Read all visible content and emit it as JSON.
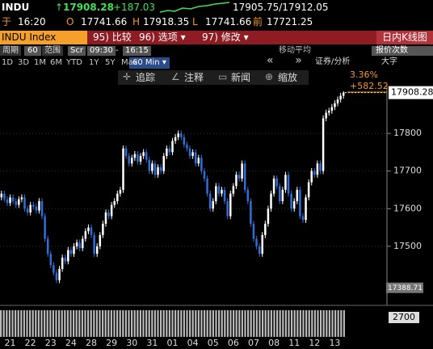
{
  "quote": {
    "ticker": "INDU",
    "last": "17908.28",
    "change": "+187.03",
    "bid_ask": "17905.75/17912.05",
    "time_label": "于",
    "time": "16:20",
    "open_label": "O",
    "open": "17741.66",
    "high_label": "H",
    "high": "17918.35",
    "low_label": "L",
    "low": "17741.66",
    "prev_label": "前",
    "prev": "17721.25"
  },
  "toolbar": {
    "security": "INDU Index",
    "buttons": [
      "95) 比较",
      "96) 选项 ▾",
      "97) 修改 ▾"
    ],
    "view": "日内K线图"
  },
  "settings": {
    "period_label": "周期",
    "period": "60",
    "range_label": "范围",
    "range_type": "Scr",
    "start": "09:30",
    "sep": "-",
    "end": "16:15",
    "ma": "移动平均",
    "ticks": "报价次数"
  },
  "ranges": [
    "1D",
    "3D",
    "1M",
    "6M",
    "YTD",
    "1Y",
    "5Y",
    "Max"
  ],
  "interval": "60 Min ▾",
  "tools": [
    "追踪",
    "注释",
    "新闻",
    "缩放"
  ],
  "extra": [
    "证券/分析",
    "大字"
  ],
  "chart_data": {
    "type": "candlestick",
    "up_color": "#ffffff",
    "down_color": "#2f6fd6",
    "ylim": [
      17371,
      17929
    ],
    "yticks": [
      17500,
      17600,
      17700,
      17800
    ],
    "grid": true,
    "last_price": 17908.28,
    "low_marker": 17388.71,
    "annotations": [
      "3.36%",
      "+582.52"
    ],
    "volume_label": 2700,
    "categories": [
      null,
      null,
      null,
      "21",
      null,
      null,
      null,
      null,
      null,
      null,
      "22",
      null,
      null,
      null,
      null,
      null,
      null,
      "23",
      null,
      null,
      null,
      null,
      null,
      null,
      "24",
      null,
      null,
      null,
      null,
      null,
      null,
      "28",
      null,
      null,
      null,
      null,
      null,
      null,
      "29",
      null,
      null,
      null,
      null,
      null,
      null,
      "30",
      null,
      null,
      null,
      null,
      null,
      null,
      "31",
      null,
      null,
      null,
      null,
      null,
      null,
      "01",
      null,
      null,
      null,
      null,
      null,
      null,
      "04",
      null,
      null,
      null,
      null,
      null,
      null,
      "05",
      null,
      null,
      null,
      null,
      null,
      null,
      "06",
      null,
      null,
      null,
      null,
      null,
      null,
      "07",
      null,
      null,
      null,
      null,
      null,
      null,
      "08",
      null,
      null,
      null,
      null,
      null,
      null,
      "11",
      null,
      null,
      null,
      null,
      null,
      null,
      "12",
      null,
      null,
      null,
      null,
      null,
      null,
      "13",
      null,
      null,
      null
    ],
    "ohlc": [
      [
        17630,
        17648,
        17622,
        17640
      ],
      [
        17640,
        17648,
        17617,
        17625
      ],
      [
        17625,
        17633,
        17607,
        17615
      ],
      [
        17615,
        17638,
        17607,
        17630
      ],
      [
        17630,
        17638,
        17612,
        17620
      ],
      [
        17620,
        17628,
        17602,
        17610
      ],
      [
        17610,
        17633,
        17602,
        17625
      ],
      [
        17625,
        17638,
        17617,
        17630
      ],
      [
        17630,
        17638,
        17592,
        17600
      ],
      [
        17600,
        17608,
        17582,
        17590
      ],
      [
        17590,
        17618,
        17582,
        17610
      ],
      [
        17610,
        17618,
        17597,
        17605
      ],
      [
        17605,
        17613,
        17587,
        17595
      ],
      [
        17595,
        17628,
        17587,
        17620
      ],
      [
        17620,
        17628,
        17572,
        17580
      ],
      [
        17580,
        17588,
        17512,
        17520
      ],
      [
        17520,
        17528,
        17472,
        17480
      ],
      [
        17480,
        17488,
        17442,
        17450
      ],
      [
        17450,
        17458,
        17422,
        17430
      ],
      [
        17430,
        17438,
        17402,
        17410
      ],
      [
        17410,
        17448,
        17402,
        17440
      ],
      [
        17440,
        17478,
        17432,
        17470
      ],
      [
        17470,
        17478,
        17452,
        17460
      ],
      [
        17460,
        17498,
        17452,
        17490
      ],
      [
        17490,
        17498,
        17472,
        17480
      ],
      [
        17480,
        17508,
        17472,
        17500
      ],
      [
        17500,
        17518,
        17492,
        17510
      ],
      [
        17510,
        17518,
        17487,
        17495
      ],
      [
        17495,
        17528,
        17487,
        17520
      ],
      [
        17520,
        17548,
        17512,
        17540
      ],
      [
        17540,
        17558,
        17532,
        17550
      ],
      [
        17550,
        17558,
        17522,
        17530
      ],
      [
        17530,
        17538,
        17472,
        17480
      ],
      [
        17480,
        17508,
        17472,
        17500
      ],
      [
        17500,
        17538,
        17492,
        17530
      ],
      [
        17530,
        17568,
        17522,
        17560
      ],
      [
        17560,
        17598,
        17552,
        17590
      ],
      [
        17590,
        17598,
        17572,
        17580
      ],
      [
        17580,
        17618,
        17572,
        17610
      ],
      [
        17610,
        17628,
        17602,
        17620
      ],
      [
        17620,
        17648,
        17612,
        17640
      ],
      [
        17640,
        17658,
        17632,
        17650
      ],
      [
        17650,
        17768,
        17642,
        17760
      ],
      [
        17760,
        17768,
        17732,
        17740
      ],
      [
        17740,
        17748,
        17712,
        17720
      ],
      [
        17720,
        17743,
        17712,
        17735
      ],
      [
        17735,
        17753,
        17727,
        17745
      ],
      [
        17745,
        17753,
        17717,
        17725
      ],
      [
        17725,
        17748,
        17717,
        17740
      ],
      [
        17740,
        17758,
        17732,
        17750
      ],
      [
        17750,
        17758,
        17722,
        17730
      ],
      [
        17730,
        17738,
        17692,
        17700
      ],
      [
        17700,
        17728,
        17692,
        17720
      ],
      [
        17720,
        17728,
        17682,
        17690
      ],
      [
        17690,
        17718,
        17682,
        17710
      ],
      [
        17710,
        17718,
        17692,
        17700
      ],
      [
        17700,
        17748,
        17692,
        17740
      ],
      [
        17740,
        17768,
        17732,
        17760
      ],
      [
        17760,
        17768,
        17742,
        17750
      ],
      [
        17750,
        17788,
        17742,
        17780
      ],
      [
        17780,
        17798,
        17772,
        17790
      ],
      [
        17790,
        17808,
        17782,
        17800
      ],
      [
        17800,
        17808,
        17782,
        17790
      ],
      [
        17790,
        17798,
        17762,
        17770
      ],
      [
        17770,
        17778,
        17752,
        17760
      ],
      [
        17760,
        17768,
        17732,
        17740
      ],
      [
        17740,
        17758,
        17732,
        17750
      ],
      [
        17750,
        17758,
        17712,
        17720
      ],
      [
        17720,
        17743,
        17712,
        17735
      ],
      [
        17735,
        17743,
        17692,
        17700
      ],
      [
        17700,
        17708,
        17672,
        17680
      ],
      [
        17680,
        17688,
        17632,
        17640
      ],
      [
        17640,
        17648,
        17592,
        17600
      ],
      [
        17600,
        17628,
        17592,
        17620
      ],
      [
        17620,
        17668,
        17612,
        17660
      ],
      [
        17660,
        17668,
        17632,
        17640
      ],
      [
        17640,
        17658,
        17632,
        17650
      ],
      [
        17650,
        17658,
        17612,
        17620
      ],
      [
        17620,
        17628,
        17572,
        17580
      ],
      [
        17580,
        17648,
        17572,
        17640
      ],
      [
        17640,
        17668,
        17632,
        17660
      ],
      [
        17660,
        17698,
        17652,
        17690
      ],
      [
        17690,
        17698,
        17672,
        17680
      ],
      [
        17680,
        17728,
        17672,
        17720
      ],
      [
        17720,
        17728,
        17642,
        17650
      ],
      [
        17650,
        17658,
        17612,
        17620
      ],
      [
        17620,
        17628,
        17552,
        17560
      ],
      [
        17560,
        17568,
        17512,
        17520
      ],
      [
        17520,
        17528,
        17492,
        17500
      ],
      [
        17500,
        17508,
        17472,
        17480
      ],
      [
        17480,
        17538,
        17472,
        17530
      ],
      [
        17530,
        17568,
        17522,
        17560
      ],
      [
        17560,
        17608,
        17552,
        17600
      ],
      [
        17600,
        17648,
        17592,
        17640
      ],
      [
        17640,
        17688,
        17632,
        17680
      ],
      [
        17680,
        17688,
        17652,
        17660
      ],
      [
        17660,
        17668,
        17612,
        17620
      ],
      [
        17620,
        17658,
        17612,
        17650
      ],
      [
        17650,
        17698,
        17642,
        17690
      ],
      [
        17690,
        17698,
        17632,
        17640
      ],
      [
        17640,
        17648,
        17592,
        17600
      ],
      [
        17600,
        17628,
        17592,
        17620
      ],
      [
        17620,
        17658,
        17612,
        17650
      ],
      [
        17650,
        17658,
        17572,
        17580
      ],
      [
        17580,
        17588,
        17562,
        17570
      ],
      [
        17570,
        17638,
        17562,
        17630
      ],
      [
        17630,
        17678,
        17622,
        17670
      ],
      [
        17670,
        17708,
        17662,
        17700
      ],
      [
        17700,
        17708,
        17682,
        17690
      ],
      [
        17690,
        17728,
        17682,
        17720
      ],
      [
        17720,
        17728,
        17692,
        17700
      ],
      [
        17700,
        17848,
        17692,
        17840
      ],
      [
        17840,
        17863,
        17832,
        17855
      ],
      [
        17855,
        17868,
        17847,
        17860
      ],
      [
        17860,
        17878,
        17852,
        17870
      ],
      [
        17870,
        17888,
        17862,
        17880
      ],
      [
        17880,
        17898,
        17872,
        17890
      ],
      [
        17890,
        17908,
        17882,
        17900
      ],
      [
        17900,
        17912.05,
        17892,
        17908.28
      ]
    ]
  }
}
